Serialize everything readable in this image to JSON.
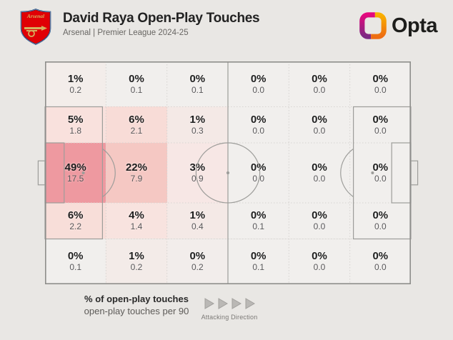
{
  "header": {
    "title": "David Raya Open-Play Touches",
    "subtitle": "Arsenal | Premier League 2024-25",
    "club": "Arsenal",
    "brand": "Opta"
  },
  "legend": {
    "percent_label": "% of open-play touches",
    "per90_label": "open-play touches per 90",
    "direction_label": "Attacking Direction"
  },
  "colors": {
    "background": "#e9e7e4",
    "zone_zero": "#f1efed",
    "heat_max": "#ee99a0",
    "pitch_line": "#9d9d9a",
    "pitch_border": "#8e8e8b",
    "grid_dotted": "#d7d4d1",
    "title_text": "#222222",
    "muted_text": "#686663",
    "opta_magenta": "#d1107e",
    "opta_purple": "#7b2982",
    "opta_orange": "#f6a500",
    "opta_deep_orange": "#ee6c12",
    "arsenal_red": "#e00005",
    "arsenal_navy": "#063672",
    "arsenal_gold": "#d4b15f"
  },
  "pitch": {
    "rows": 5,
    "cols": 6,
    "row_boundaries_pct": [
      0,
      20.35,
      36.53,
      63.47,
      79.65,
      100
    ],
    "col_boundaries_pct": [
      0,
      16.667,
      33.333,
      50,
      66.667,
      83.333,
      100
    ],
    "cells": [
      [
        {
          "pct": "1%",
          "per90": "0.2",
          "color": "#f3edea"
        },
        {
          "pct": "0%",
          "per90": "0.1",
          "color": "#f1efed"
        },
        {
          "pct": "0%",
          "per90": "0.1",
          "color": "#f1efed"
        },
        {
          "pct": "0%",
          "per90": "0.0",
          "color": "#f1efed"
        },
        {
          "pct": "0%",
          "per90": "0.0",
          "color": "#f1efed"
        },
        {
          "pct": "0%",
          "per90": "0.0",
          "color": "#f1efed"
        }
      ],
      [
        {
          "pct": "5%",
          "per90": "1.8",
          "color": "#f9e1dd"
        },
        {
          "pct": "6%",
          "per90": "2.1",
          "color": "#f8dcd7"
        },
        {
          "pct": "1%",
          "per90": "0.3",
          "color": "#f4e9e6"
        },
        {
          "pct": "0%",
          "per90": "0.0",
          "color": "#f1efed"
        },
        {
          "pct": "0%",
          "per90": "0.0",
          "color": "#f1efed"
        },
        {
          "pct": "0%",
          "per90": "0.0",
          "color": "#f1efed"
        }
      ],
      [
        {
          "pct": "49%",
          "per90": "17.5",
          "color": "#ee99a0"
        },
        {
          "pct": "22%",
          "per90": "7.9",
          "color": "#f5c8c3"
        },
        {
          "pct": "3%",
          "per90": "0.9",
          "color": "#f7e7e5"
        },
        {
          "pct": "0%",
          "per90": "0.0",
          "color": "#f1efed"
        },
        {
          "pct": "0%",
          "per90": "0.0",
          "color": "#f1efed"
        },
        {
          "pct": "0%",
          "per90": "0.0",
          "color": "#f1efed"
        }
      ],
      [
        {
          "pct": "6%",
          "per90": "2.2",
          "color": "#f8ded9"
        },
        {
          "pct": "4%",
          "per90": "1.4",
          "color": "#f8e3df"
        },
        {
          "pct": "1%",
          "per90": "0.4",
          "color": "#f4e9e6"
        },
        {
          "pct": "0%",
          "per90": "0.1",
          "color": "#f1efed"
        },
        {
          "pct": "0%",
          "per90": "0.0",
          "color": "#f1efed"
        },
        {
          "pct": "0%",
          "per90": "0.0",
          "color": "#f1efed"
        }
      ],
      [
        {
          "pct": "0%",
          "per90": "0.1",
          "color": "#f1efed"
        },
        {
          "pct": "1%",
          "per90": "0.2",
          "color": "#f3ebe8"
        },
        {
          "pct": "0%",
          "per90": "0.2",
          "color": "#f2edeb"
        },
        {
          "pct": "0%",
          "per90": "0.1",
          "color": "#f1efed"
        },
        {
          "pct": "0%",
          "per90": "0.0",
          "color": "#f1efed"
        },
        {
          "pct": "0%",
          "per90": "0.0",
          "color": "#f1efed"
        }
      ]
    ]
  },
  "chart_data": {
    "type": "heatmap",
    "title": "David Raya Open-Play Touches",
    "subtitle": "Arsenal | Premier League 2024-25",
    "rows": 5,
    "cols": 6,
    "pct_of_open_play_touches": [
      [
        1,
        0,
        0,
        0,
        0,
        0
      ],
      [
        5,
        6,
        1,
        0,
        0,
        0
      ],
      [
        49,
        22,
        3,
        0,
        0,
        0
      ],
      [
        6,
        4,
        1,
        0,
        0,
        0
      ],
      [
        0,
        1,
        0,
        0,
        0,
        0
      ]
    ],
    "open_play_touches_per_90": [
      [
        0.2,
        0.1,
        0.1,
        0.0,
        0.0,
        0.0
      ],
      [
        1.8,
        2.1,
        0.3,
        0.0,
        0.0,
        0.0
      ],
      [
        17.5,
        7.9,
        0.9,
        0.0,
        0.0,
        0.0
      ],
      [
        2.2,
        1.4,
        0.4,
        0.1,
        0.0,
        0.0
      ],
      [
        0.1,
        0.2,
        0.2,
        0.1,
        0.0,
        0.0
      ]
    ],
    "legend": [
      "% of open-play touches",
      "open-play touches per 90"
    ],
    "attacking_direction": "left-to-right",
    "colorscale": {
      "min_color": "#f1efed",
      "max_color": "#ee99a0",
      "min": 0,
      "max": 49
    }
  }
}
